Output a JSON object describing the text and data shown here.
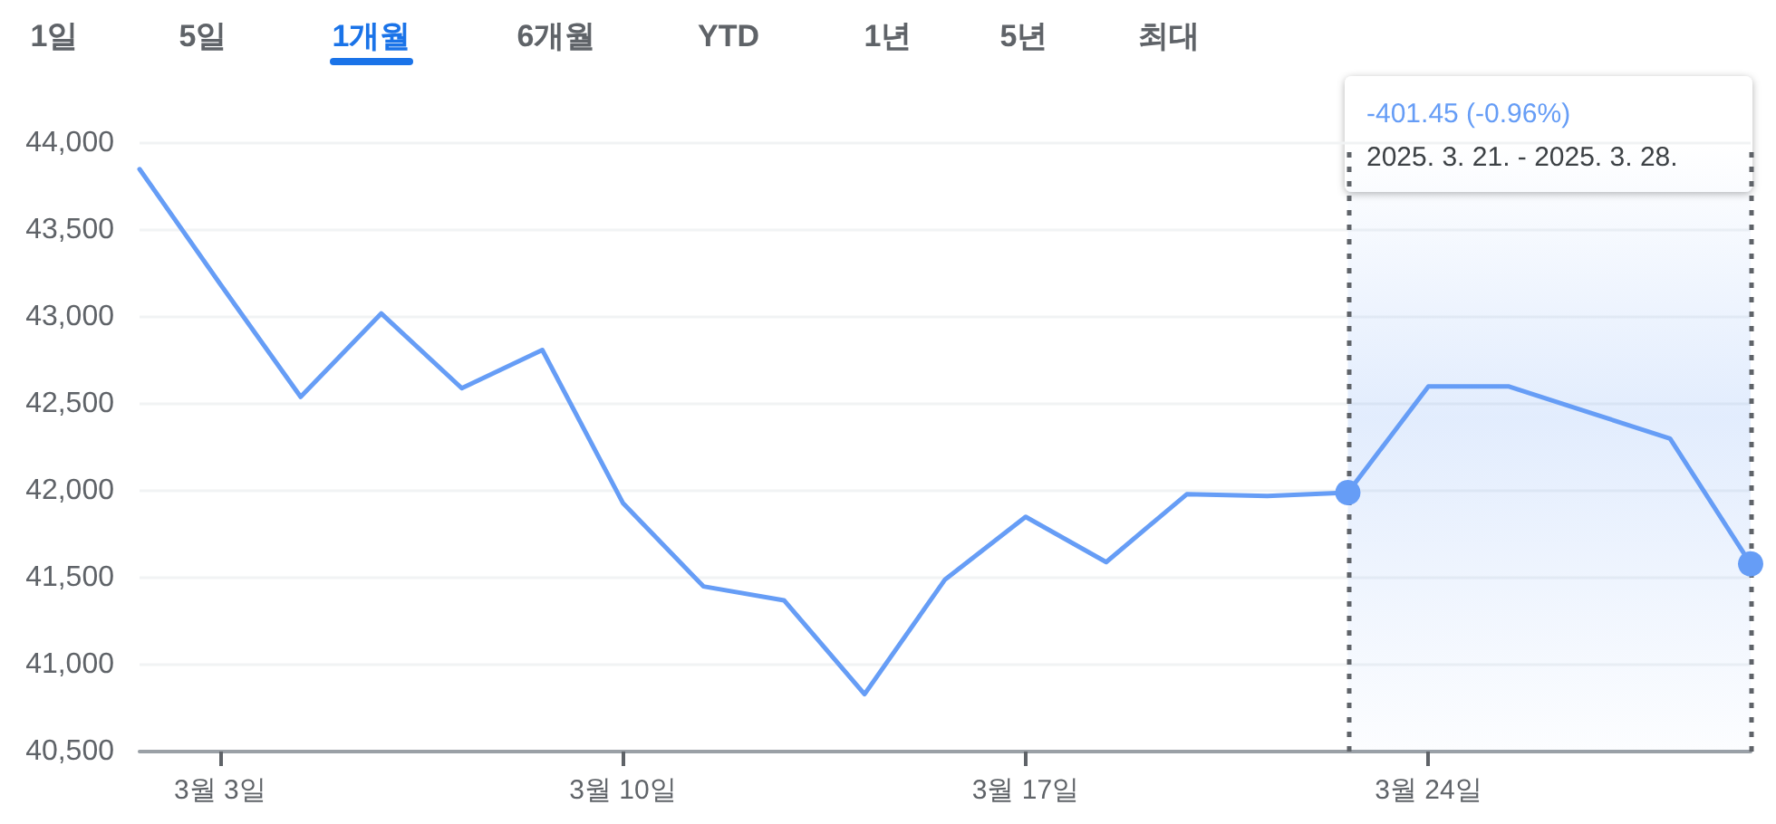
{
  "chart_data": {
    "type": "line",
    "categories": [
      null,
      "3월 3일",
      null,
      null,
      null,
      null,
      "3월 10일",
      null,
      null,
      null,
      null,
      "3월 17일",
      null,
      null,
      null,
      null,
      "3월 24일",
      null,
      null,
      null,
      null
    ],
    "series": [
      {
        "color": "#669df6",
        "values": [
          43850,
          43190,
          42540,
          43020,
          42590,
          42810,
          41930,
          41450,
          41370,
          40830,
          41490,
          41850,
          41590,
          41980,
          41970,
          41990,
          42600,
          42600,
          42450,
          42300,
          41580
        ]
      }
    ],
    "ylim": [
      40500,
      44000
    ],
    "yticks": [
      {
        "value": 40500,
        "label": "40,500"
      },
      {
        "value": 41000,
        "label": "41,000"
      },
      {
        "value": 41500,
        "label": "41,500"
      },
      {
        "value": 42000,
        "label": "42,000"
      },
      {
        "value": 42500,
        "label": "42,500"
      },
      {
        "value": 43000,
        "label": "43,000"
      },
      {
        "value": 43500,
        "label": "43,500"
      },
      {
        "value": 44000,
        "label": "44,000"
      }
    ],
    "grid": "y",
    "marker": "none",
    "annotations": [
      "1일",
      "5일",
      "1개월",
      "6개월",
      "YTD",
      "1년",
      "5년",
      "최대",
      "-401.45 (-0.96%)",
      "2025. 3. 21. - 2025. 3. 28."
    ]
  }
}
